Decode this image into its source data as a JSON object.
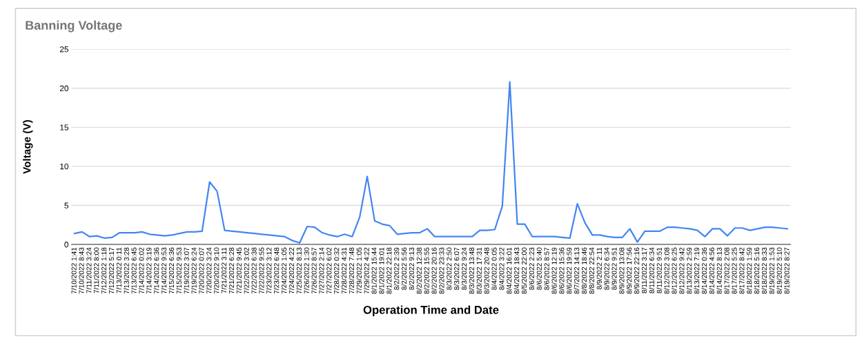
{
  "chart_data": {
    "type": "line",
    "title": "Banning Voltage",
    "xlabel": "Operation Time and Date",
    "ylabel": "Voltage (V)",
    "categories": [
      "7/10/2022 1:41",
      "7/10/2022 8:43",
      "7/11/2022 3:24",
      "7/11/2022 8:00",
      "7/12/2022 1:18",
      "7/12/2022 5:17",
      "7/13/2022 0:11",
      "7/13/2022 3:28",
      "7/13/2022 6:45",
      "7/14/2022 0:02",
      "7/14/2022 3:19",
      "7/14/2022 6:36",
      "7/14/2022 9:53",
      "7/15/2022 6:36",
      "7/15/2022 9:53",
      "7/19/2022 3:07",
      "7/19/2022 6:24",
      "7/20/2022 0:07",
      "7/20/2022 3:24",
      "7/20/2022 9:10",
      "7/21/2022 3:11",
      "7/21/2022 6:28",
      "7/21/2022 9:45",
      "7/22/2022 3:02",
      "7/22/2022 6:38",
      "7/22/2022 9:55",
      "7/23/2022 3:12",
      "7/23/2022 6:48",
      "7/24/2022 1:05",
      "7/24/2022 4:22",
      "7/25/2022 8:13",
      "7/26/2022 1:30",
      "7/26/2022 8:57",
      "7/27/2022 2:14",
      "7/27/2022 6:02",
      "7/28/2022 0:32",
      "7/28/2022 4:31",
      "7/28/2022 7:48",
      "7/29/2022 1:05",
      "7/29/2022 4:22",
      "8/1/2022 15:44",
      "8/1/2022 19:01",
      "8/1/2022 22:18",
      "8/2/2022 2:39",
      "8/2/2022 5:56",
      "8/2/2022 9:13",
      "8/2/2022 12:38",
      "8/2/2022 15:55",
      "8/2/2022 20:16",
      "8/2/2022 23:33",
      "8/3/2022 2:50",
      "8/3/2022 6:07",
      "8/3/2022 9:24",
      "8/3/2022 13:48",
      "8/3/2022 17:31",
      "8/3/2022 20:48",
      "8/4/2022 0:05",
      "8/4/2022 3:22",
      "8/4/2022 16:01",
      "8/4/2022 18:43",
      "8/5/2022 22:00",
      "8/6/2022 2:23",
      "8/6/2022 5:40",
      "8/6/2022 8:57",
      "8/6/2022 12:19",
      "8/6/2022 15:36",
      "8/6/2022 19:59",
      "8/7/2022 14:13",
      "8/8/2022 18:46",
      "8/8/2022 22:54",
      "8/9/2022 2:11",
      "8/9/2022 6:34",
      "8/9/2022 9:51",
      "8/9/2022 13:08",
      "8/9/2022 17:56",
      "8/9/2022 22:16",
      "8/11/2022 3:17",
      "8/11/2022 6:34",
      "8/11/2022 9:51",
      "8/12/2022 3:08",
      "8/12/2022 6:25",
      "8/12/2022 9:42",
      "8/13/2022 2:59",
      "8/13/2022 7:19",
      "8/14/2022 0:36",
      "8/14/2022 4:56",
      "8/14/2022 8:13",
      "8/17/2022 2:08",
      "8/17/2022 5:25",
      "8/17/2022 8:42",
      "8/18/2022 1:59",
      "8/18/2022 5:16",
      "8/18/2022 8:33",
      "8/19/2022 1:53",
      "8/19/2022 5:10",
      "8/19/2022 8:27"
    ],
    "series": [
      {
        "color": "#4285f4",
        "values": [
          1.4,
          1.6,
          1.0,
          1.1,
          0.8,
          0.9,
          1.5,
          1.5,
          1.5,
          1.6,
          1.3,
          1.2,
          1.1,
          1.2,
          1.4,
          1.6,
          1.6,
          1.7,
          8.0,
          6.8,
          1.8,
          1.7,
          1.6,
          1.5,
          1.4,
          1.3,
          1.2,
          1.1,
          1.0,
          0.5,
          0.2,
          2.3,
          2.2,
          1.5,
          1.2,
          1.0,
          1.3,
          1.0,
          3.5,
          8.7,
          3.0,
          2.6,
          2.4,
          1.3,
          1.4,
          1.5,
          1.5,
          2.0,
          1.0,
          1.0,
          1.0,
          1.0,
          1.0,
          1.0,
          1.8,
          1.8,
          1.9,
          4.9,
          20.8,
          2.6,
          2.6,
          1.0,
          1.0,
          1.0,
          1.0,
          0.9,
          0.8,
          5.2,
          2.8,
          1.2,
          1.2,
          1.0,
          0.9,
          0.9,
          2.0,
          0.3,
          1.7,
          1.7,
          1.7,
          2.2,
          2.2,
          2.1,
          2.0,
          1.8,
          1.0,
          2.0,
          2.0,
          1.1,
          2.1,
          2.1,
          1.8,
          2.0,
          2.2,
          2.2,
          2.1,
          2.0
        ]
      }
    ],
    "ylim": [
      0,
      25
    ],
    "yticks": [
      0,
      5,
      10,
      15,
      20,
      25
    ],
    "grid": "y",
    "legend": false,
    "marker": "none",
    "line_style": "solid"
  }
}
